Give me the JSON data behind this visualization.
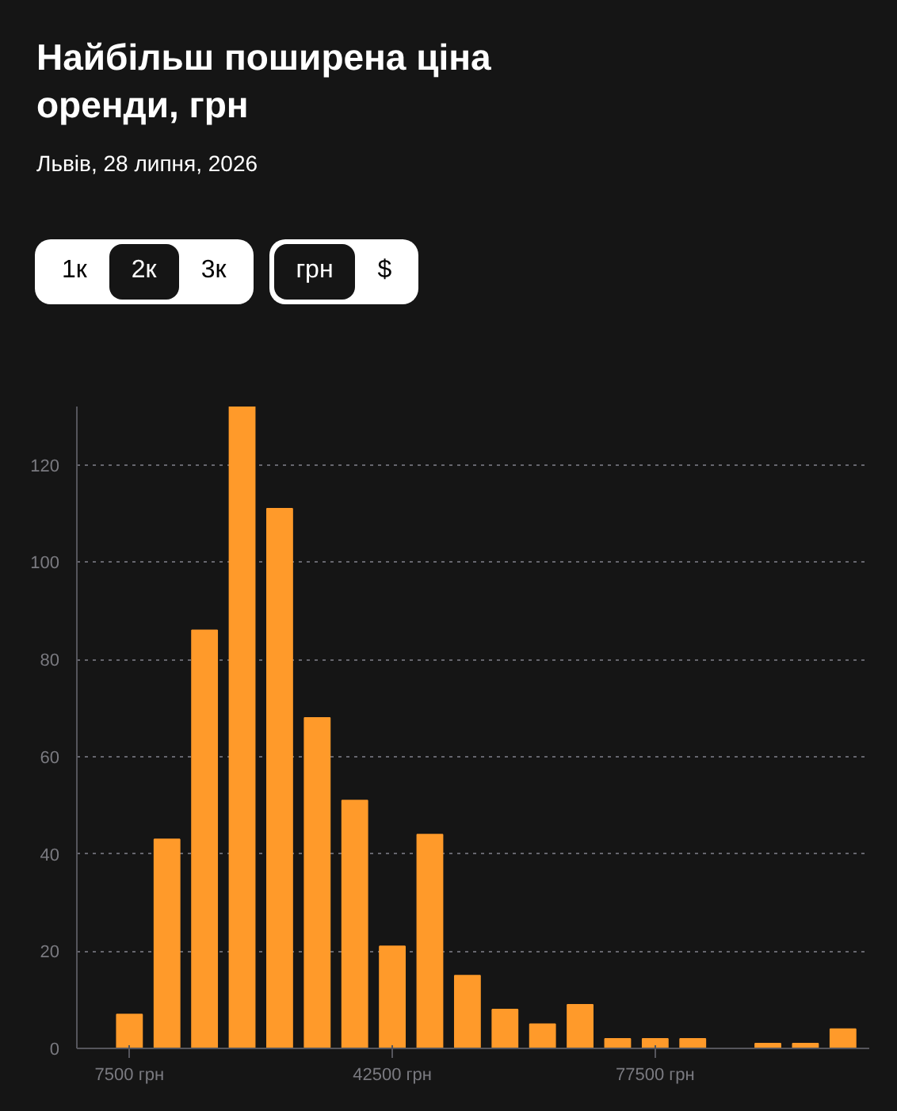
{
  "chart_data": {
    "type": "histogram",
    "title": "Найбільш поширена ціна оренди, грн",
    "subtitle": "Львів, 28 липня, 2026",
    "annotations": [
      "1к",
      "2к",
      "3к",
      "грн",
      "$"
    ],
    "bins": [
      5000,
      10000,
      15000,
      20000,
      25000,
      30000,
      35000,
      40000,
      45000,
      50000,
      55000,
      60000,
      65000,
      70000,
      75000,
      80000,
      85000,
      90000,
      95000,
      100000,
      105000
    ],
    "values": [
      7,
      43,
      86,
      132,
      111,
      68,
      51,
      21,
      44,
      15,
      8,
      5,
      9,
      2,
      2,
      2,
      0,
      1,
      1,
      4
    ],
    "color": "#ff9a2a",
    "xlim": [
      500,
      106000
    ],
    "xticks": [
      {
        "value": 7500,
        "label": "7500 грн"
      },
      {
        "value": 42500,
        "label": "42500 грн"
      },
      {
        "value": 77500,
        "label": "77500 грн"
      }
    ],
    "ylim": [
      0,
      132
    ],
    "yticks": [
      0,
      20,
      40,
      60,
      80,
      100,
      120
    ],
    "grid": "y"
  }
}
